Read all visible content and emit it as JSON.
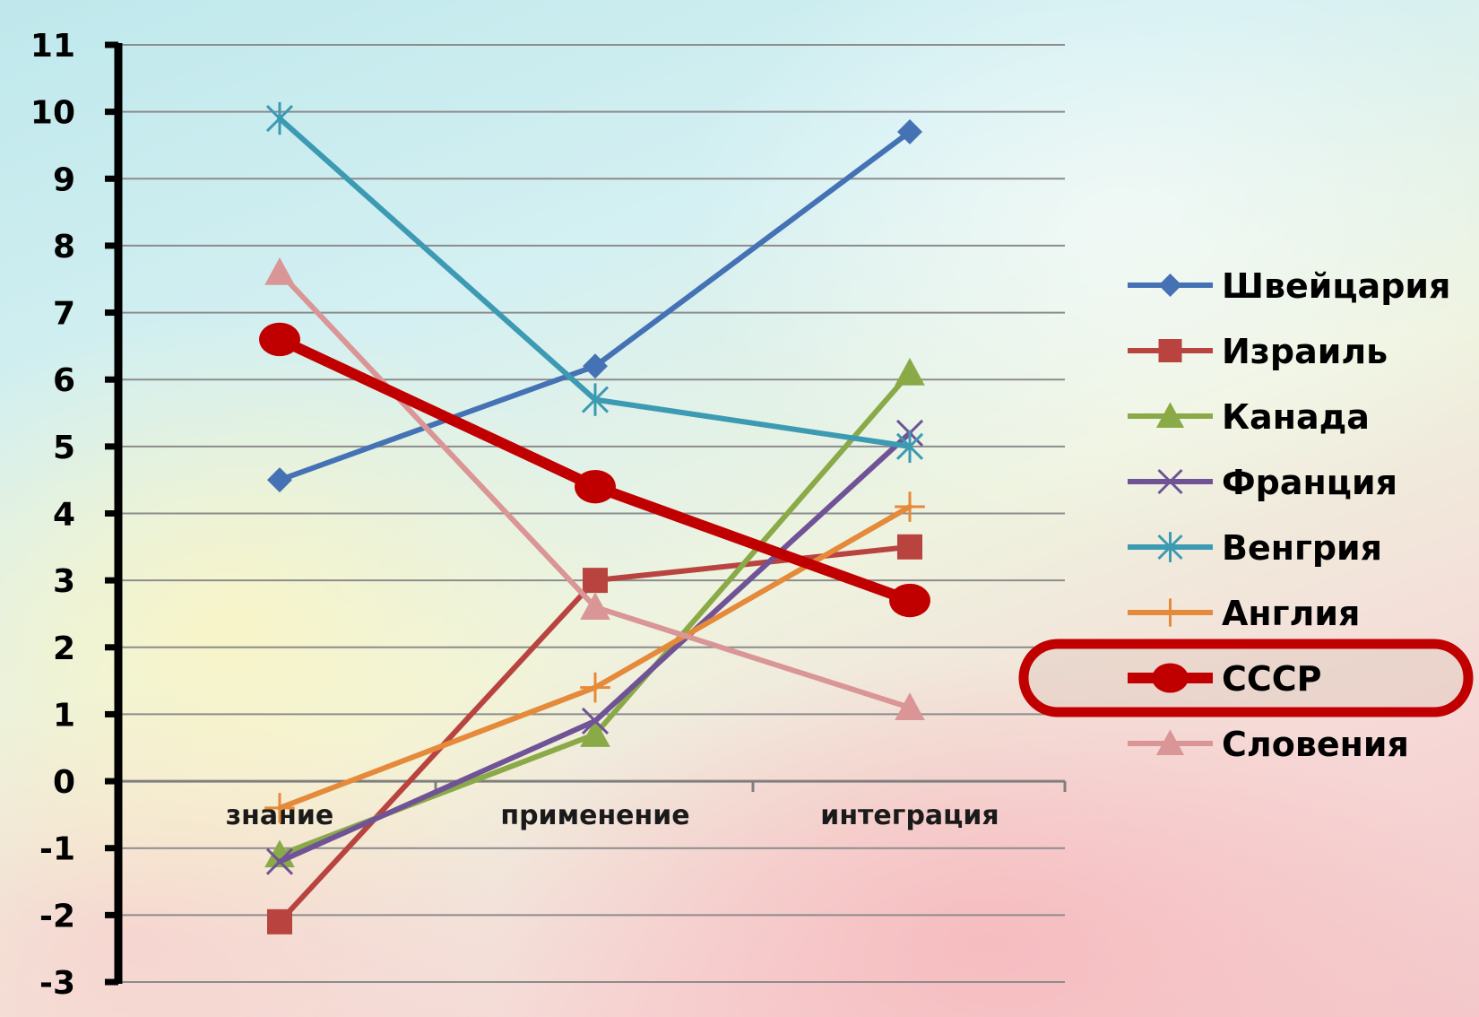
{
  "chart_data": {
    "type": "line",
    "categories": [
      "знание",
      "применение",
      "интеграция"
    ],
    "ylim": [
      -3,
      11
    ],
    "yticks": [
      "11",
      "10",
      "9",
      "8",
      "7",
      "6",
      "5",
      "4",
      "3",
      "2",
      "1",
      "0",
      "-1",
      "-2",
      "-3"
    ],
    "grid": true,
    "legend_position": "right",
    "highlighted_series": "СССР",
    "highlight_color": "#c00000",
    "series": [
      {
        "name": "Швейцария",
        "values": [
          4.5,
          6.2,
          9.7
        ],
        "color": "#4472b4",
        "marker": "diamond",
        "width": 6
      },
      {
        "name": "Израиль",
        "values": [
          -2.1,
          3.0,
          3.5
        ],
        "color": "#b8433f",
        "marker": "square",
        "width": 6
      },
      {
        "name": "Канада",
        "values": [
          -1.1,
          0.7,
          6.1
        ],
        "color": "#8aaa48",
        "marker": "triangle",
        "width": 6
      },
      {
        "name": "Франция",
        "values": [
          -1.2,
          0.9,
          5.2
        ],
        "color": "#6f5396",
        "marker": "x",
        "width": 6
      },
      {
        "name": "Венгрия",
        "values": [
          9.9,
          5.7,
          5.0
        ],
        "color": "#3c9ab3",
        "marker": "star",
        "width": 6
      },
      {
        "name": "Англия",
        "values": [
          -0.4,
          1.4,
          4.1
        ],
        "color": "#e58a3a",
        "marker": "plus",
        "width": 6
      },
      {
        "name": "СССР",
        "values": [
          6.6,
          4.4,
          2.7
        ],
        "color": "#c00000",
        "marker": "circle",
        "width": 12
      },
      {
        "name": "Словения",
        "values": [
          7.6,
          2.6,
          1.1
        ],
        "color": "#da9596",
        "marker": "triangle",
        "width": 6
      }
    ]
  }
}
